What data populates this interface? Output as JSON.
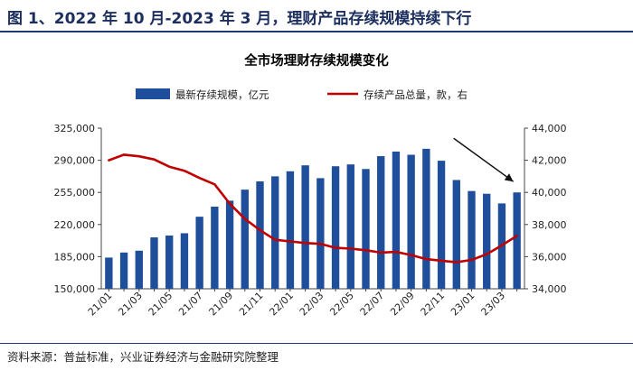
{
  "figure": {
    "title": "图 1、2022 年 10 月-2023 年 3 月，理财产品存续规模持续下行",
    "source": "资料来源：普益标准，兴业证券经济与金融研究院整理"
  },
  "colors": {
    "bar": "#1f4e9a",
    "line": "#c00000",
    "arrow": "#111111",
    "axis": "#444444"
  },
  "chart_data": {
    "type": "bar",
    "title": "全市场理财存续规模变化",
    "categories": [
      "21/01",
      "21/02",
      "21/03",
      "21/04",
      "21/05",
      "21/06",
      "21/07",
      "21/08",
      "21/09",
      "21/10",
      "21/11",
      "21/12",
      "22/01",
      "22/02",
      "22/03",
      "22/04",
      "22/05",
      "22/06",
      "22/07",
      "22/08",
      "22/09",
      "22/10",
      "22/11",
      "22/12",
      "23/01",
      "23/02",
      "23/03",
      "23/04"
    ],
    "x_tick_labels": [
      "21/01",
      "21/03",
      "21/05",
      "21/07",
      "21/09",
      "21/11",
      "22/01",
      "22/03",
      "22/05",
      "22/07",
      "22/09",
      "22/11",
      "23/01",
      "23/03"
    ],
    "series": [
      {
        "name": "最新存续规模，亿元",
        "type": "bar",
        "axis": "left",
        "values": [
          184000,
          189500,
          191500,
          206000,
          208000,
          210500,
          228500,
          239500,
          246000,
          258000,
          267000,
          272500,
          278000,
          284500,
          270500,
          283500,
          285500,
          280500,
          294500,
          299500,
          296000,
          302500,
          289500,
          268500,
          256500,
          253500,
          243000,
          255000
        ]
      },
      {
        "name": "存续产品总量，款，右",
        "type": "line",
        "axis": "right",
        "values": [
          42000,
          42350,
          42250,
          42050,
          41600,
          41350,
          40900,
          40500,
          39300,
          38350,
          37650,
          37050,
          36950,
          36850,
          36800,
          36550,
          36500,
          36400,
          36250,
          36300,
          36100,
          35850,
          35750,
          35650,
          35800,
          36150,
          36700,
          37300
        ]
      }
    ],
    "ylim_left": [
      150000,
      325000
    ],
    "yticks_left": [
      "150,000",
      "185,000",
      "220,000",
      "255,000",
      "290,000",
      "325,000"
    ],
    "ylim_right": [
      34000,
      44000
    ],
    "yticks_right": [
      "34,000",
      "36,000",
      "38,000",
      "40,000",
      "42,000",
      "44,000"
    ],
    "annotation": "downward arrow pointing to the latest bar (23/04)",
    "legend_position": "top"
  }
}
